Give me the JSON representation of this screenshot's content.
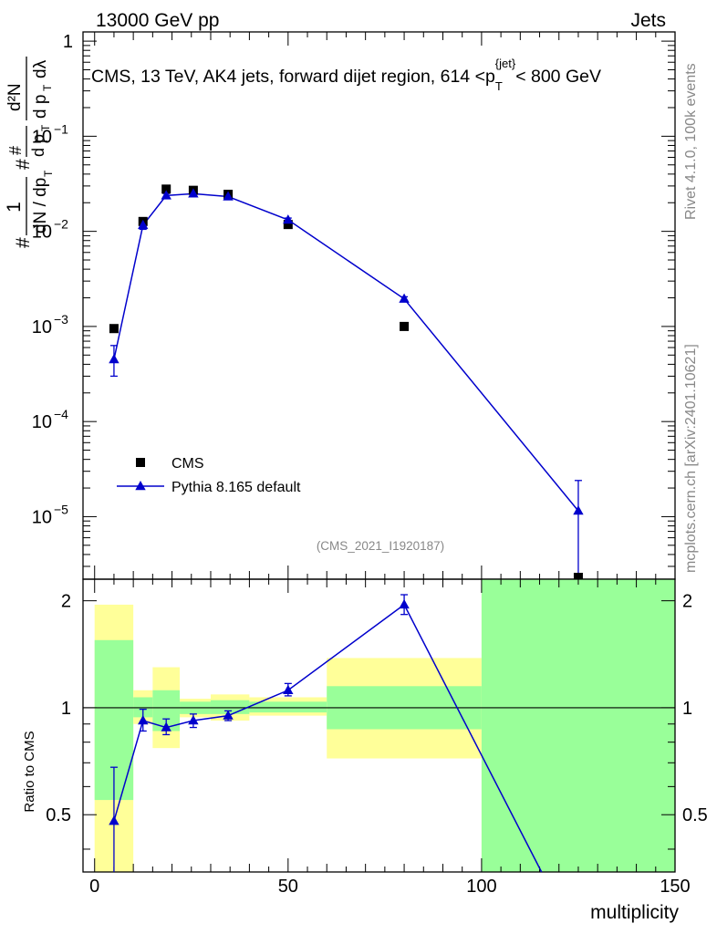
{
  "header": {
    "left": "13000 GeV pp",
    "right": "Jets"
  },
  "side_text": {
    "rivet": "Rivet 4.1.0,  100k events",
    "mcplots": "mcplots.cern.ch [arXiv:2401.10621]"
  },
  "colors": {
    "cms": "#000000",
    "pythia": "#0000cc",
    "band_inner": "#99ff99",
    "band_outer": "#ffff99"
  },
  "chart_data": [
    {
      "type": "scatter",
      "title": "CMS, 13 TeV, AK4 jets, forward dijet region, 614 <p_T^{jet}< 800 GeV",
      "analysis_tag": "(CMS_2021_I1920187)",
      "ylabel_parts": {
        "frac_top": "1",
        "frac_bottom": "dN / dp_T",
        "hash": "#",
        "num": "d²N",
        "den": "dp_T dλ",
        "hash_num": "#",
        "hash_den": "dp_T"
      },
      "y_scale": "log",
      "xlim": [
        -3,
        150
      ],
      "ylim": [
        2.2e-06,
        1.25
      ],
      "y_ticks": [
        {
          "value": 1,
          "label": "1"
        },
        {
          "value": 0.1,
          "label": "10",
          "exp": "−1"
        },
        {
          "value": 0.01,
          "label": "10",
          "exp": "−2"
        },
        {
          "value": 0.001,
          "label": "10",
          "exp": "−3"
        },
        {
          "value": 0.0001,
          "label": "10",
          "exp": "−4"
        },
        {
          "value": 1e-05,
          "label": "10",
          "exp": "−5"
        }
      ],
      "legend": {
        "placement": "lower-left"
      },
      "series": [
        {
          "name": "CMS",
          "marker": "square",
          "points": [
            {
              "x": 5,
              "y": 0.00095
            },
            {
              "x": 12.5,
              "y": 0.0127
            },
            {
              "x": 18.5,
              "y": 0.0278
            },
            {
              "x": 25.5,
              "y": 0.027
            },
            {
              "x": 34.5,
              "y": 0.0245
            },
            {
              "x": 50,
              "y": 0.0118
            },
            {
              "x": 80,
              "y": 0.001
            },
            {
              "x": 125,
              "y": 2.3e-06
            }
          ]
        },
        {
          "name": "Pythia 8.165 default",
          "marker": "triangle",
          "points": [
            {
              "x": 5,
              "y": 0.00045,
              "ylo": 0.0003,
              "yhi": 0.00063
            },
            {
              "x": 12.5,
              "y": 0.0116,
              "ylo": 0.0105,
              "yhi": 0.0128
            },
            {
              "x": 18.5,
              "y": 0.0238,
              "ylo": 0.0225,
              "yhi": 0.025
            },
            {
              "x": 25.5,
              "y": 0.0249,
              "ylo": 0.0238,
              "yhi": 0.026
            },
            {
              "x": 34.5,
              "y": 0.0232,
              "ylo": 0.0222,
              "yhi": 0.0242
            },
            {
              "x": 50,
              "y": 0.0132,
              "ylo": 0.0126,
              "yhi": 0.0138
            },
            {
              "x": 80,
              "y": 0.00195,
              "ylo": 0.00185,
              "yhi": 0.00205
            },
            {
              "x": 125,
              "y": 1.15e-05,
              "ylo": 2.3e-06,
              "yhi": 2.4e-05
            }
          ]
        }
      ]
    },
    {
      "type": "line",
      "ylabel": "Ratio to CMS",
      "xlabel": "multiplicity",
      "y_scale": "log",
      "xlim": [
        -3,
        150
      ],
      "ylim": [
        0.345,
        2.3
      ],
      "x_ticks": [
        0,
        50,
        100,
        150
      ],
      "y_ticks": [
        0.5,
        1,
        2
      ],
      "y_tick_labels": [
        "0.5",
        "1",
        "2"
      ],
      "bands": [
        {
          "x0": 0,
          "x1": 10,
          "inner_lo": 0.55,
          "inner_hi": 1.55,
          "outer_lo": 0.345,
          "outer_hi": 1.95
        },
        {
          "x0": 10,
          "x1": 15,
          "inner_lo": 0.94,
          "inner_hi": 1.07,
          "outer_lo": 0.9,
          "outer_hi": 1.12
        },
        {
          "x0": 15,
          "x1": 22,
          "inner_lo": 0.86,
          "inner_hi": 1.12,
          "outer_lo": 0.77,
          "outer_hi": 1.3
        },
        {
          "x0": 22,
          "x1": 30,
          "inner_lo": 0.96,
          "inner_hi": 1.04,
          "outer_lo": 0.94,
          "outer_hi": 1.06
        },
        {
          "x0": 30,
          "x1": 40,
          "inner_lo": 0.96,
          "inner_hi": 1.05,
          "outer_lo": 0.92,
          "outer_hi": 1.09
        },
        {
          "x0": 40,
          "x1": 60,
          "inner_lo": 0.97,
          "inner_hi": 1.04,
          "outer_lo": 0.95,
          "outer_hi": 1.07
        },
        {
          "x0": 60,
          "x1": 100,
          "inner_lo": 0.87,
          "inner_hi": 1.15,
          "outer_lo": 0.72,
          "outer_hi": 1.38
        },
        {
          "x0": 100,
          "x1": 150,
          "inner_lo": 0.345,
          "inner_hi": 2.3,
          "outer_lo": 0.345,
          "outer_hi": 2.3
        }
      ],
      "series": [
        {
          "name": "Pythia 8.165 default",
          "points": [
            {
              "x": 5,
              "y": 0.48,
              "ylo": 0.345,
              "yhi": 0.68
            },
            {
              "x": 12.5,
              "y": 0.92,
              "ylo": 0.86,
              "yhi": 0.99
            },
            {
              "x": 18.5,
              "y": 0.88,
              "ylo": 0.84,
              "yhi": 0.93
            },
            {
              "x": 25.5,
              "y": 0.92,
              "ylo": 0.88,
              "yhi": 0.96
            },
            {
              "x": 34.5,
              "y": 0.95,
              "ylo": 0.92,
              "yhi": 0.98
            },
            {
              "x": 50,
              "y": 1.12,
              "ylo": 1.08,
              "yhi": 1.17
            },
            {
              "x": 80,
              "y": 1.95,
              "ylo": 1.83,
              "yhi": 2.08
            },
            {
              "x": 115.5,
              "y": 0.345
            }
          ]
        }
      ]
    }
  ]
}
